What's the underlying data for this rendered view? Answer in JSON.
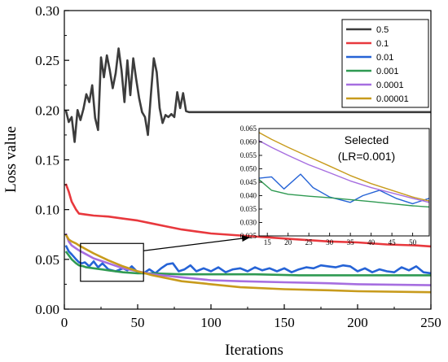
{
  "chart_data": {
    "type": "line",
    "xlabel": "Iterations",
    "ylabel": "Loss value",
    "xlim": [
      0,
      250
    ],
    "ylim": [
      0,
      0.3
    ],
    "xticks": [
      0,
      50,
      100,
      150,
      200,
      250
    ],
    "yticks": [
      0.0,
      0.05,
      0.1,
      0.15,
      0.2,
      0.25,
      0.3
    ],
    "ytick_labels": [
      "0.00",
      "0.05",
      "0.10",
      "0.15",
      "0.20",
      "0.25",
      "0.30"
    ],
    "grid": false,
    "legend": "top-right",
    "series": [
      {
        "name": "0.5",
        "color": "#3c3c3c",
        "x": [
          1,
          3,
          5,
          7,
          9,
          11,
          13,
          15,
          17,
          19,
          21,
          23,
          25,
          27,
          29,
          31,
          33,
          35,
          37,
          39,
          41,
          43,
          45,
          47,
          49,
          51,
          53,
          55,
          57,
          59,
          61,
          63,
          65,
          67,
          69,
          71,
          73,
          75,
          77,
          79,
          81,
          83,
          85,
          90,
          100,
          120,
          150,
          200,
          250
        ],
        "y": [
          0.2,
          0.188,
          0.193,
          0.168,
          0.2,
          0.19,
          0.201,
          0.216,
          0.208,
          0.225,
          0.192,
          0.18,
          0.253,
          0.233,
          0.255,
          0.24,
          0.222,
          0.237,
          0.262,
          0.24,
          0.208,
          0.25,
          0.215,
          0.252,
          0.231,
          0.212,
          0.198,
          0.193,
          0.175,
          0.215,
          0.252,
          0.238,
          0.202,
          0.187,
          0.195,
          0.193,
          0.196,
          0.193,
          0.218,
          0.202,
          0.217,
          0.199,
          0.198,
          0.198,
          0.198,
          0.198,
          0.198,
          0.198,
          0.198
        ]
      },
      {
        "name": "0.1",
        "color": "#e8383d",
        "x": [
          1,
          3,
          5,
          8,
          10,
          15,
          20,
          30,
          40,
          50,
          60,
          70,
          80,
          90,
          100,
          120,
          140,
          160,
          180,
          200,
          220,
          240,
          250
        ],
        "y": [
          0.126,
          0.118,
          0.108,
          0.1,
          0.096,
          0.095,
          0.094,
          0.093,
          0.091,
          0.089,
          0.086,
          0.083,
          0.08,
          0.078,
          0.076,
          0.074,
          0.072,
          0.07,
          0.068,
          0.067,
          0.065,
          0.064,
          0.063
        ]
      },
      {
        "name": "0.01",
        "color": "#2563d6",
        "x": [
          1,
          3,
          5,
          8,
          10,
          12,
          14,
          17,
          20,
          23,
          26,
          30,
          35,
          40,
          43,
          46,
          50,
          54,
          58,
          62,
          66,
          70,
          74,
          78,
          82,
          86,
          90,
          95,
          100,
          105,
          110,
          115,
          120,
          125,
          130,
          135,
          140,
          145,
          150,
          155,
          160,
          165,
          170,
          175,
          180,
          185,
          190,
          195,
          200,
          205,
          210,
          215,
          220,
          225,
          230,
          235,
          240,
          245,
          250
        ],
        "y": [
          0.064,
          0.058,
          0.055,
          0.05,
          0.047,
          0.046,
          0.047,
          0.043,
          0.048,
          0.042,
          0.046,
          0.04,
          0.038,
          0.041,
          0.039,
          0.043,
          0.037,
          0.036,
          0.04,
          0.036,
          0.041,
          0.045,
          0.046,
          0.038,
          0.04,
          0.044,
          0.038,
          0.041,
          0.038,
          0.042,
          0.037,
          0.04,
          0.041,
          0.038,
          0.042,
          0.039,
          0.041,
          0.038,
          0.041,
          0.037,
          0.04,
          0.042,
          0.041,
          0.044,
          0.043,
          0.042,
          0.044,
          0.043,
          0.038,
          0.041,
          0.037,
          0.04,
          0.038,
          0.037,
          0.042,
          0.039,
          0.043,
          0.037,
          0.036
        ]
      },
      {
        "name": "0.001",
        "color": "#2f9a52",
        "x": [
          1,
          3,
          5,
          8,
          10,
          13,
          15,
          20,
          30,
          40,
          50,
          60,
          80,
          100,
          130,
          160,
          200,
          250
        ],
        "y": [
          0.058,
          0.054,
          0.05,
          0.046,
          0.044,
          0.043,
          0.042,
          0.041,
          0.039,
          0.037,
          0.036,
          0.036,
          0.035,
          0.035,
          0.035,
          0.034,
          0.034,
          0.034
        ]
      },
      {
        "name": "0.0001",
        "color": "#a66ee0",
        "x": [
          1,
          3,
          5,
          8,
          10,
          15,
          20,
          30,
          40,
          50,
          60,
          80,
          100,
          120,
          150,
          180,
          200,
          250
        ],
        "y": [
          0.076,
          0.068,
          0.064,
          0.061,
          0.059,
          0.055,
          0.051,
          0.046,
          0.041,
          0.038,
          0.035,
          0.032,
          0.029,
          0.028,
          0.027,
          0.026,
          0.025,
          0.024
        ]
      },
      {
        "name": "0.00001",
        "color": "#c89b1c",
        "x": [
          1,
          3,
          5,
          8,
          10,
          15,
          20,
          30,
          40,
          50,
          60,
          80,
          100,
          120,
          150,
          180,
          200,
          250
        ],
        "y": [
          0.075,
          0.07,
          0.068,
          0.066,
          0.064,
          0.06,
          0.056,
          0.049,
          0.043,
          0.038,
          0.034,
          0.028,
          0.025,
          0.022,
          0.02,
          0.019,
          0.018,
          0.017
        ]
      }
    ],
    "zoom_box": {
      "x": [
        11,
        54
      ],
      "y": [
        0.028,
        0.066
      ]
    },
    "inset": {
      "xlim": [
        13,
        54
      ],
      "ylim": [
        0.025,
        0.065
      ],
      "xticks": [
        15,
        20,
        25,
        30,
        35,
        40,
        45,
        50
      ],
      "yticks": [
        0.025,
        0.03,
        0.035,
        0.04,
        0.045,
        0.05,
        0.055,
        0.06,
        0.065
      ],
      "ytick_labels": [
        "0.025",
        "0.030",
        "0.035",
        "0.040",
        "0.045",
        "0.050",
        "0.055",
        "0.060",
        "0.065"
      ],
      "annotation": [
        "Selected",
        "(LR=0.001)"
      ],
      "series": [
        {
          "name": "0.01",
          "color": "#2563d6",
          "x": [
            13,
            16,
            19,
            23,
            26,
            30,
            35,
            38,
            42,
            46,
            50,
            54
          ],
          "y": [
            0.0465,
            0.047,
            0.0425,
            0.048,
            0.043,
            0.0395,
            0.0375,
            0.04,
            0.042,
            0.039,
            0.037,
            0.039
          ]
        },
        {
          "name": "0.001",
          "color": "#2f9a52",
          "x": [
            13,
            16,
            20,
            25,
            30,
            35,
            40,
            45,
            50,
            54
          ],
          "y": [
            0.046,
            0.042,
            0.0405,
            0.0398,
            0.0392,
            0.0385,
            0.0378,
            0.037,
            0.0362,
            0.0358
          ]
        },
        {
          "name": "0.0001",
          "color": "#a66ee0",
          "x": [
            13,
            16,
            20,
            25,
            30,
            35,
            40,
            45,
            50,
            54
          ],
          "y": [
            0.0605,
            0.058,
            0.055,
            0.0515,
            0.0485,
            0.0455,
            0.043,
            0.041,
            0.039,
            0.0375
          ]
        },
        {
          "name": "0.00001",
          "color": "#c89b1c",
          "x": [
            13,
            16,
            20,
            25,
            30,
            35,
            40,
            45,
            50,
            54
          ],
          "y": [
            0.0635,
            0.061,
            0.058,
            0.0545,
            0.051,
            0.0475,
            0.0445,
            0.042,
            0.0395,
            0.038
          ]
        }
      ]
    }
  }
}
